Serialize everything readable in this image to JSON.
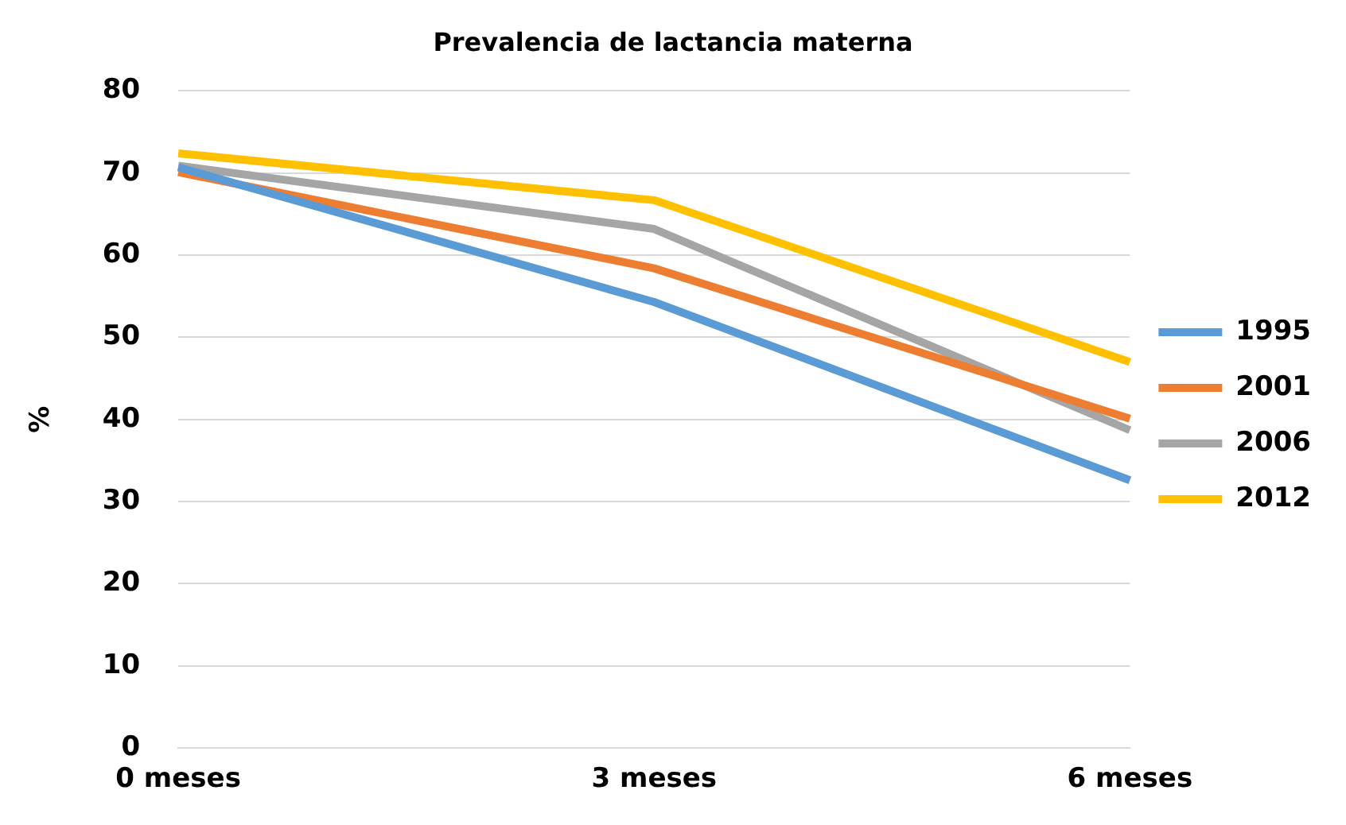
{
  "chart_data": {
    "type": "line",
    "title": "Prevalencia de lactancia materna",
    "ylabel": "%",
    "categories": [
      "0 meses",
      "3 meses",
      "6 meses"
    ],
    "series": [
      {
        "name": "1995",
        "color": "#5b9bd5",
        "values": [
          70.7,
          54.3,
          32.6
        ]
      },
      {
        "name": "2001",
        "color": "#ed7d31",
        "values": [
          70.1,
          58.4,
          40.1
        ]
      },
      {
        "name": "2006",
        "color": "#a5a5a5",
        "values": [
          70.9,
          63.2,
          38.7
        ]
      },
      {
        "name": "2012",
        "color": "#ffc000",
        "values": [
          72.4,
          66.7,
          47.0
        ]
      }
    ],
    "ylim": [
      0,
      80
    ],
    "yticks": [
      0,
      10,
      20,
      30,
      40,
      50,
      60,
      70,
      80
    ],
    "grid": "y",
    "legend": "right",
    "marker": "none",
    "line_style": "solid"
  }
}
